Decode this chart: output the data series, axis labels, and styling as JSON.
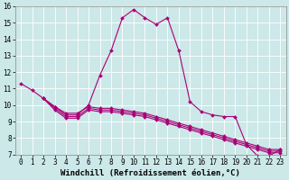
{
  "xlabel": "Windchill (Refroidissement éolien,°C)",
  "bg_color": "#cce8e8",
  "line_color": "#aa0077",
  "marker": "D",
  "marker_size": 2.0,
  "xlim": [
    -0.5,
    23.5
  ],
  "ylim": [
    7,
    16
  ],
  "xticks": [
    0,
    1,
    2,
    3,
    4,
    5,
    6,
    7,
    8,
    9,
    10,
    11,
    12,
    13,
    14,
    15,
    16,
    17,
    18,
    19,
    20,
    21,
    22,
    23
  ],
  "yticks": [
    7,
    8,
    9,
    10,
    11,
    12,
    13,
    14,
    15,
    16
  ],
  "line1_x": [
    0,
    1,
    2,
    3,
    4,
    5,
    6,
    7,
    8,
    9,
    10,
    11,
    12,
    13,
    14,
    15,
    16,
    17,
    18,
    19,
    20,
    21,
    22,
    23
  ],
  "line1_y": [
    11.3,
    10.9,
    10.4,
    9.9,
    9.4,
    9.4,
    10.0,
    11.8,
    13.3,
    15.3,
    15.8,
    15.3,
    14.9,
    15.3,
    13.3,
    10.2,
    9.6,
    9.4,
    9.3,
    9.3,
    7.6,
    6.9,
    6.9,
    7.3
  ],
  "line2_x": [
    2,
    3,
    4,
    5,
    6,
    7,
    8,
    9,
    10,
    11,
    12,
    13,
    14,
    15,
    16,
    17,
    18,
    19,
    20,
    21,
    22,
    23
  ],
  "line2_y": [
    10.4,
    9.9,
    9.5,
    9.5,
    9.9,
    9.8,
    9.8,
    9.7,
    9.6,
    9.5,
    9.3,
    9.1,
    8.9,
    8.7,
    8.5,
    8.3,
    8.1,
    7.9,
    7.7,
    7.5,
    7.3,
    7.3
  ],
  "line3_x": [
    2,
    3,
    4,
    5,
    6,
    7,
    8,
    9,
    10,
    11,
    12,
    13,
    14,
    15,
    16,
    17,
    18,
    19,
    20,
    21,
    22,
    23
  ],
  "line3_y": [
    10.4,
    9.8,
    9.3,
    9.3,
    9.8,
    9.7,
    9.7,
    9.6,
    9.5,
    9.4,
    9.2,
    9.0,
    8.8,
    8.6,
    8.4,
    8.2,
    8.0,
    7.8,
    7.6,
    7.4,
    7.2,
    7.2
  ],
  "line4_x": [
    2,
    3,
    4,
    5,
    6,
    7,
    8,
    9,
    10,
    11,
    12,
    13,
    14,
    15,
    16,
    17,
    18,
    19,
    20,
    21,
    22,
    23
  ],
  "line4_y": [
    10.4,
    9.7,
    9.2,
    9.2,
    9.7,
    9.6,
    9.6,
    9.5,
    9.4,
    9.3,
    9.1,
    8.9,
    8.7,
    8.5,
    8.3,
    8.1,
    7.9,
    7.7,
    7.5,
    7.3,
    7.1,
    7.1
  ],
  "grid_color": "#ffffff",
  "tick_fontsize": 5.5,
  "xlabel_fontsize": 6.5,
  "linewidth": 0.8
}
